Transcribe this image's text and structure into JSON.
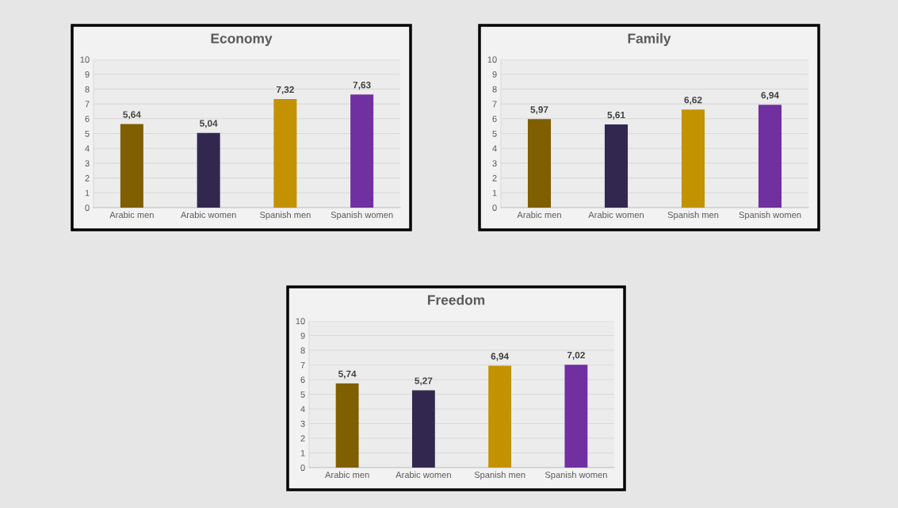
{
  "chart_data": [
    {
      "type": "bar",
      "title": "Economy",
      "categories": [
        "Arabic men",
        "Arabic women",
        "Spanish men",
        "Spanish women"
      ],
      "values": [
        5.64,
        5.04,
        7.32,
        7.63
      ],
      "value_labels": [
        "5,64",
        "5,04",
        "7,32",
        "7,63"
      ],
      "colors": [
        "#7f5f00",
        "#32284f",
        "#c39200",
        "#7030a0"
      ],
      "ylim": [
        0,
        10
      ],
      "yticks": [
        0,
        1,
        2,
        3,
        4,
        5,
        6,
        7,
        8,
        9,
        10
      ],
      "grid": "y"
    },
    {
      "type": "bar",
      "title": "Family",
      "categories": [
        "Arabic men",
        "Arabic women",
        "Spanish men",
        "Spanish women"
      ],
      "values": [
        5.97,
        5.61,
        6.62,
        6.94
      ],
      "value_labels": [
        "5,97",
        "5,61",
        "6,62",
        "6,94"
      ],
      "colors": [
        "#7f5f00",
        "#32284f",
        "#c39200",
        "#7030a0"
      ],
      "ylim": [
        0,
        10
      ],
      "yticks": [
        0,
        1,
        2,
        3,
        4,
        5,
        6,
        7,
        8,
        9,
        10
      ],
      "grid": "y"
    },
    {
      "type": "bar",
      "title": "Freedom",
      "categories": [
        "Arabic men",
        "Arabic women",
        "Spanish men",
        "Spanish women"
      ],
      "values": [
        5.74,
        5.27,
        6.94,
        7.02
      ],
      "value_labels": [
        "5,74",
        "5,27",
        "6,94",
        "7,02"
      ],
      "colors": [
        "#7f5f00",
        "#32284f",
        "#c39200",
        "#7030a0"
      ],
      "ylim": [
        0,
        10
      ],
      "yticks": [
        0,
        1,
        2,
        3,
        4,
        5,
        6,
        7,
        8,
        9,
        10
      ],
      "grid": "y"
    }
  ]
}
